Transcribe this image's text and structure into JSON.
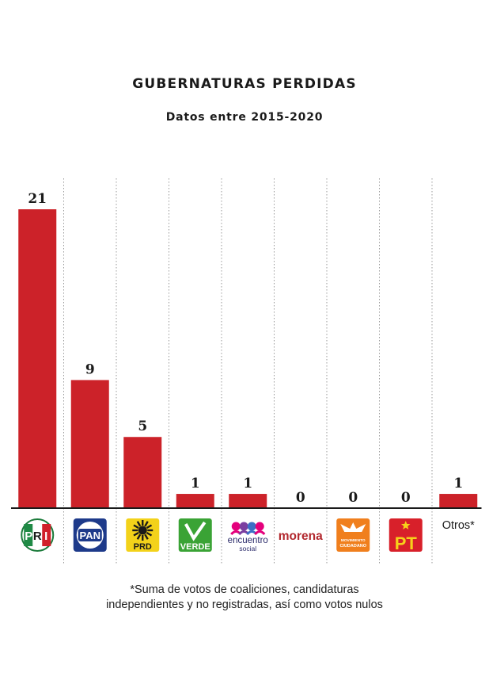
{
  "title": "GUBERNATURAS PERDIDAS",
  "subtitle": "Datos entre 2015-2020",
  "footnote": {
    "line1": "*Suma de votos de coaliciones, candidaturas",
    "line2": "independientes y no registradas, así como votos nulos"
  },
  "colors": {
    "bar": "#cc2229",
    "separator": "#9a9a9a",
    "baseline": "#1a1a1a"
  },
  "chart_data": {
    "type": "bar",
    "title": "GUBERNATURAS PERDIDAS",
    "subtitle": "Datos entre 2015-2020",
    "categories": [
      "PRI",
      "PAN",
      "PRD",
      "VERDE",
      "encuentro social",
      "morena",
      "MOVIMIENTO CIUDADANO",
      "PT",
      "Otros*"
    ],
    "values": [
      21,
      9,
      5,
      1,
      1,
      0,
      0,
      0,
      1
    ],
    "ylim": [
      0,
      21
    ],
    "grid": false,
    "legend": "none"
  },
  "logos": [
    {
      "name": "pri-logo",
      "text": "PRI"
    },
    {
      "name": "pan-logo",
      "text": "PAN"
    },
    {
      "name": "prd-logo",
      "text": "PRD"
    },
    {
      "name": "verde-logo",
      "text": "VERDE"
    },
    {
      "name": "encuentro-social-logo",
      "text": "encuentro",
      "text2": "social"
    },
    {
      "name": "morena-logo",
      "text": "morena"
    },
    {
      "name": "movimiento-ciudadano-logo",
      "text": "MOVIMIENTO",
      "text2": "CIUDADANO"
    },
    {
      "name": "pt-logo",
      "text": "PT"
    },
    {
      "name": "otros-label",
      "text": "Otros*"
    }
  ]
}
